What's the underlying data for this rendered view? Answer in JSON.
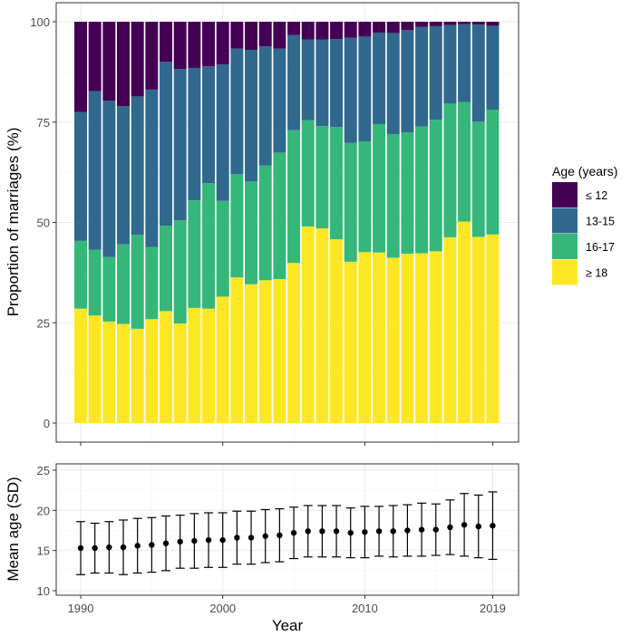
{
  "chart_data": [
    {
      "type": "bar",
      "stacked": true,
      "title": "",
      "xlabel": "",
      "ylabel": "Proportion of marriages (%)",
      "ylim": [
        0,
        100
      ],
      "yticks": [
        "0",
        "25",
        "50",
        "75",
        "100"
      ],
      "x": [
        1990,
        1991,
        1992,
        1993,
        1994,
        1995,
        1996,
        1997,
        1998,
        1999,
        2000,
        2001,
        2002,
        2003,
        2004,
        2005,
        2006,
        2007,
        2008,
        2009,
        2010,
        2011,
        2012,
        2013,
        2014,
        2015,
        2016,
        2017,
        2018,
        2019
      ],
      "legend_title": "Age (years)",
      "legend_position": "right",
      "series": [
        {
          "name": "≥ 18",
          "color": "#FDE725",
          "values": [
            28.5,
            26.8,
            25.3,
            24.7,
            23.5,
            25.9,
            27.9,
            24.8,
            28.7,
            28.5,
            31.5,
            36.3,
            34.6,
            35.6,
            35.9,
            39.9,
            49.0,
            48.5,
            45.8,
            40.2,
            42.6,
            42.5,
            41.2,
            42.2,
            42.3,
            42.8,
            46.3,
            50.2,
            46.4,
            47.0
          ]
        },
        {
          "name": "16-17",
          "color": "#35B779",
          "values": [
            16.9,
            16.4,
            16.1,
            19.9,
            23.4,
            18.0,
            21.3,
            25.7,
            26.8,
            31.3,
            23.9,
            25.7,
            25.6,
            28.6,
            31.5,
            33.1,
            26.5,
            25.5,
            28.0,
            29.6,
            27.6,
            32.0,
            30.8,
            30.2,
            31.6,
            32.8,
            33.3,
            29.8,
            28.7,
            31.1
          ]
        },
        {
          "name": "13-15",
          "color": "#31688E",
          "values": [
            32.1,
            39.5,
            38.9,
            34.4,
            34.5,
            39.2,
            40.8,
            37.7,
            33.0,
            29.1,
            34.0,
            31.3,
            32.8,
            29.7,
            25.9,
            23.7,
            20.1,
            21.6,
            21.9,
            26.2,
            26.1,
            22.8,
            25.2,
            25.5,
            24.8,
            23.3,
            19.6,
            19.4,
            24.2,
            20.9
          ]
        },
        {
          "name": "≤ 12",
          "color": "#440154",
          "values": [
            22.5,
            17.3,
            19.7,
            21.0,
            18.6,
            16.9,
            10.0,
            11.8,
            11.5,
            11.1,
            10.6,
            6.7,
            7.0,
            6.1,
            6.7,
            3.3,
            4.4,
            4.4,
            4.3,
            4.0,
            3.7,
            2.7,
            2.8,
            2.1,
            1.3,
            1.1,
            0.8,
            0.6,
            0.7,
            1.0
          ]
        }
      ]
    },
    {
      "type": "scatter",
      "error_bars": true,
      "title": "",
      "xlabel": "Year",
      "ylabel": "Mean age (SD)",
      "ylim": [
        10,
        25
      ],
      "yticks": [
        "10",
        "15",
        "20",
        "25"
      ],
      "xticks": [
        "1990",
        "2000",
        "2010",
        "2019"
      ],
      "x": [
        1990,
        1991,
        1992,
        1993,
        1994,
        1995,
        1996,
        1997,
        1998,
        1999,
        2000,
        2001,
        2002,
        2003,
        2004,
        2005,
        2006,
        2007,
        2008,
        2009,
        2010,
        2011,
        2012,
        2013,
        2014,
        2015,
        2016,
        2017,
        2018,
        2019
      ],
      "mean": [
        15.3,
        15.3,
        15.4,
        15.4,
        15.6,
        15.7,
        15.9,
        16.1,
        16.2,
        16.3,
        16.3,
        16.6,
        16.6,
        16.8,
        16.9,
        17.2,
        17.4,
        17.4,
        17.4,
        17.2,
        17.3,
        17.4,
        17.4,
        17.5,
        17.6,
        17.6,
        17.9,
        18.2,
        18.0,
        18.1
      ],
      "sd": [
        3.3,
        3.1,
        3.2,
        3.4,
        3.4,
        3.4,
        3.4,
        3.3,
        3.4,
        3.4,
        3.4,
        3.3,
        3.3,
        3.3,
        3.3,
        3.2,
        3.2,
        3.2,
        3.2,
        3.1,
        3.2,
        3.1,
        3.2,
        3.2,
        3.3,
        3.2,
        3.4,
        3.9,
        3.9,
        4.2
      ]
    }
  ]
}
